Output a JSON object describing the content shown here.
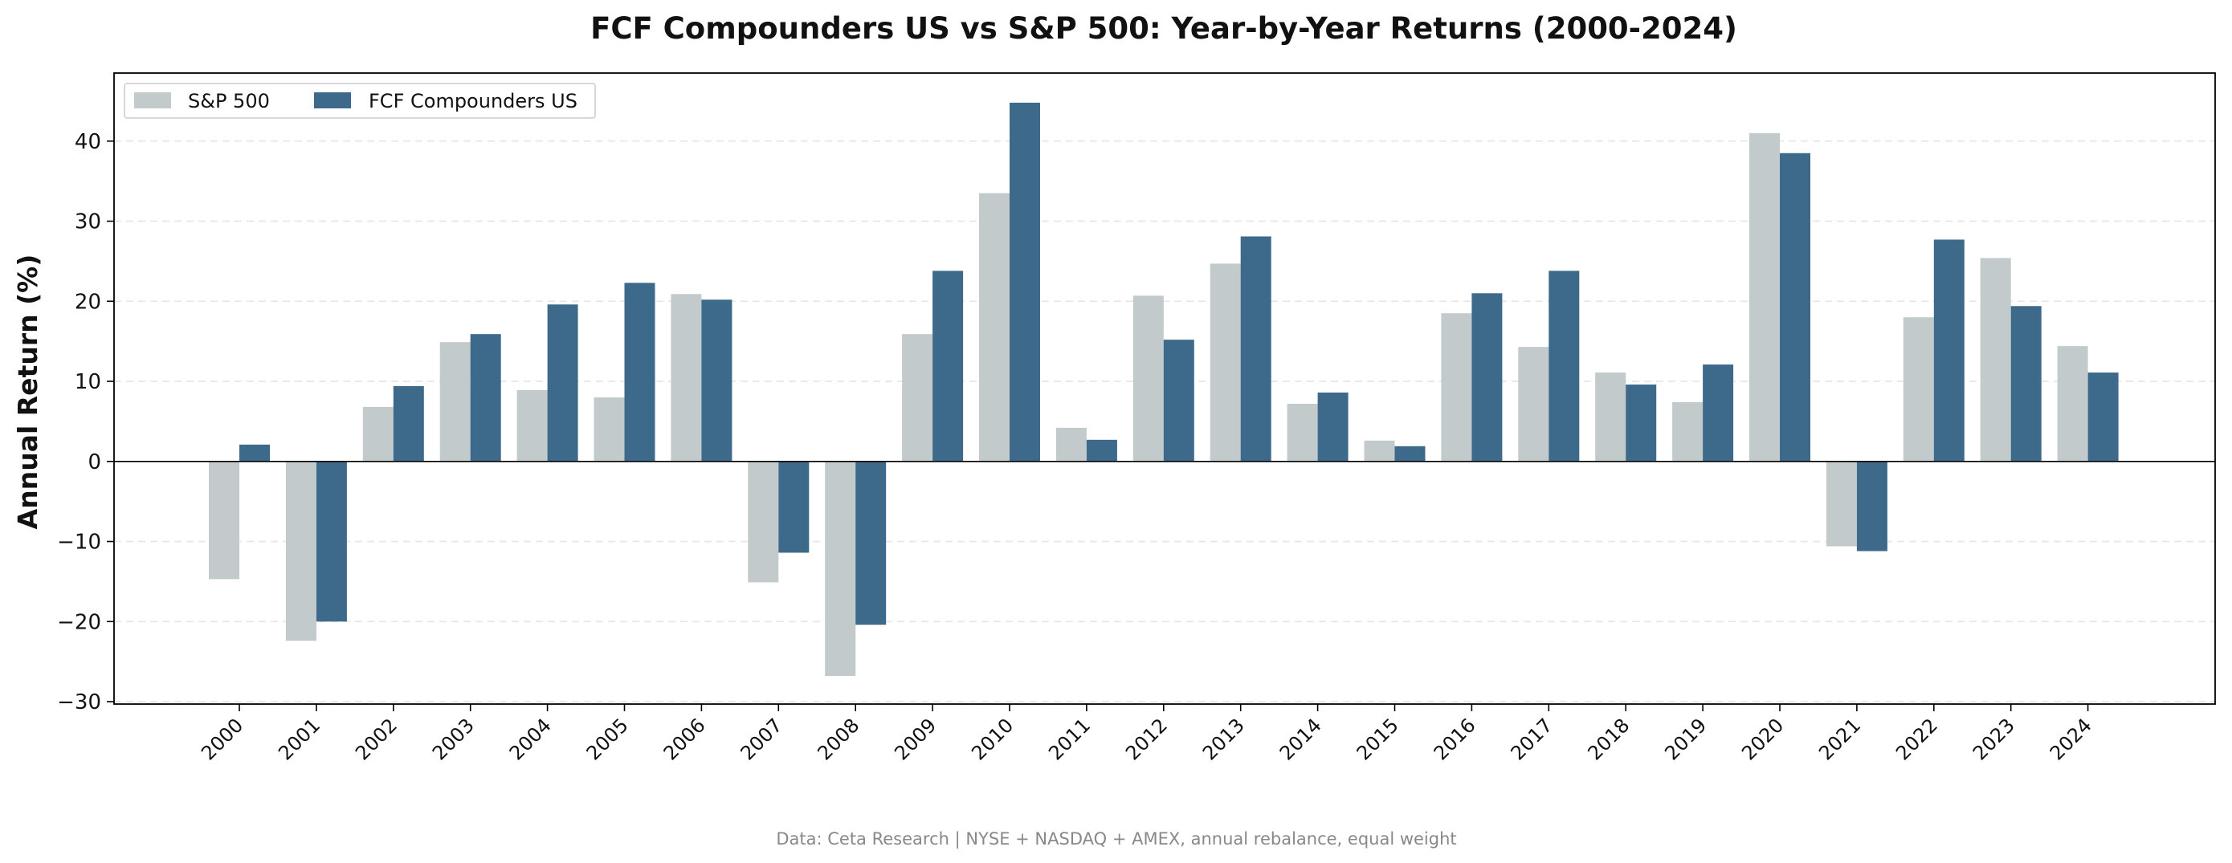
{
  "chart_data": {
    "type": "bar",
    "title": "FCF Compounders US vs S&P 500: Year-by-Year Returns (2000-2024)",
    "xlabel": "",
    "ylabel": "Annual Return (%)",
    "ylim": [
      -30.3,
      48.5
    ],
    "yticks": [
      -30,
      -20,
      -10,
      0,
      10,
      20,
      30,
      40
    ],
    "grid": "horizontal dashed",
    "legend_position": "top-left",
    "categories": [
      "2000",
      "2001",
      "2002",
      "2003",
      "2004",
      "2005",
      "2006",
      "2007",
      "2008",
      "2009",
      "2010",
      "2011",
      "2012",
      "2013",
      "2014",
      "2015",
      "2016",
      "2017",
      "2018",
      "2019",
      "2020",
      "2021",
      "2022",
      "2023",
      "2024"
    ],
    "series": [
      {
        "name": "S&P 500",
        "color": "#c2cacb",
        "values": [
          -14.7,
          -22.4,
          6.8,
          14.9,
          8.9,
          8.0,
          20.9,
          -15.1,
          -26.8,
          15.9,
          33.5,
          4.2,
          20.7,
          24.7,
          7.2,
          2.6,
          18.5,
          14.3,
          11.1,
          7.4,
          41.0,
          -10.6,
          18.0,
          25.4,
          14.4
        ]
      },
      {
        "name": "FCF Compounders US",
        "color": "#3d6a8a",
        "values": [
          2.1,
          -20.0,
          9.4,
          15.9,
          19.6,
          22.3,
          20.2,
          -11.4,
          -20.4,
          23.8,
          44.8,
          2.7,
          15.2,
          28.1,
          8.6,
          1.9,
          21.0,
          23.8,
          9.6,
          12.1,
          38.5,
          -11.2,
          27.7,
          19.4,
          11.1
        ]
      }
    ],
    "source_note": "Data: Ceta Research | NYSE + NASDAQ + AMEX, annual rebalance, equal weight"
  }
}
